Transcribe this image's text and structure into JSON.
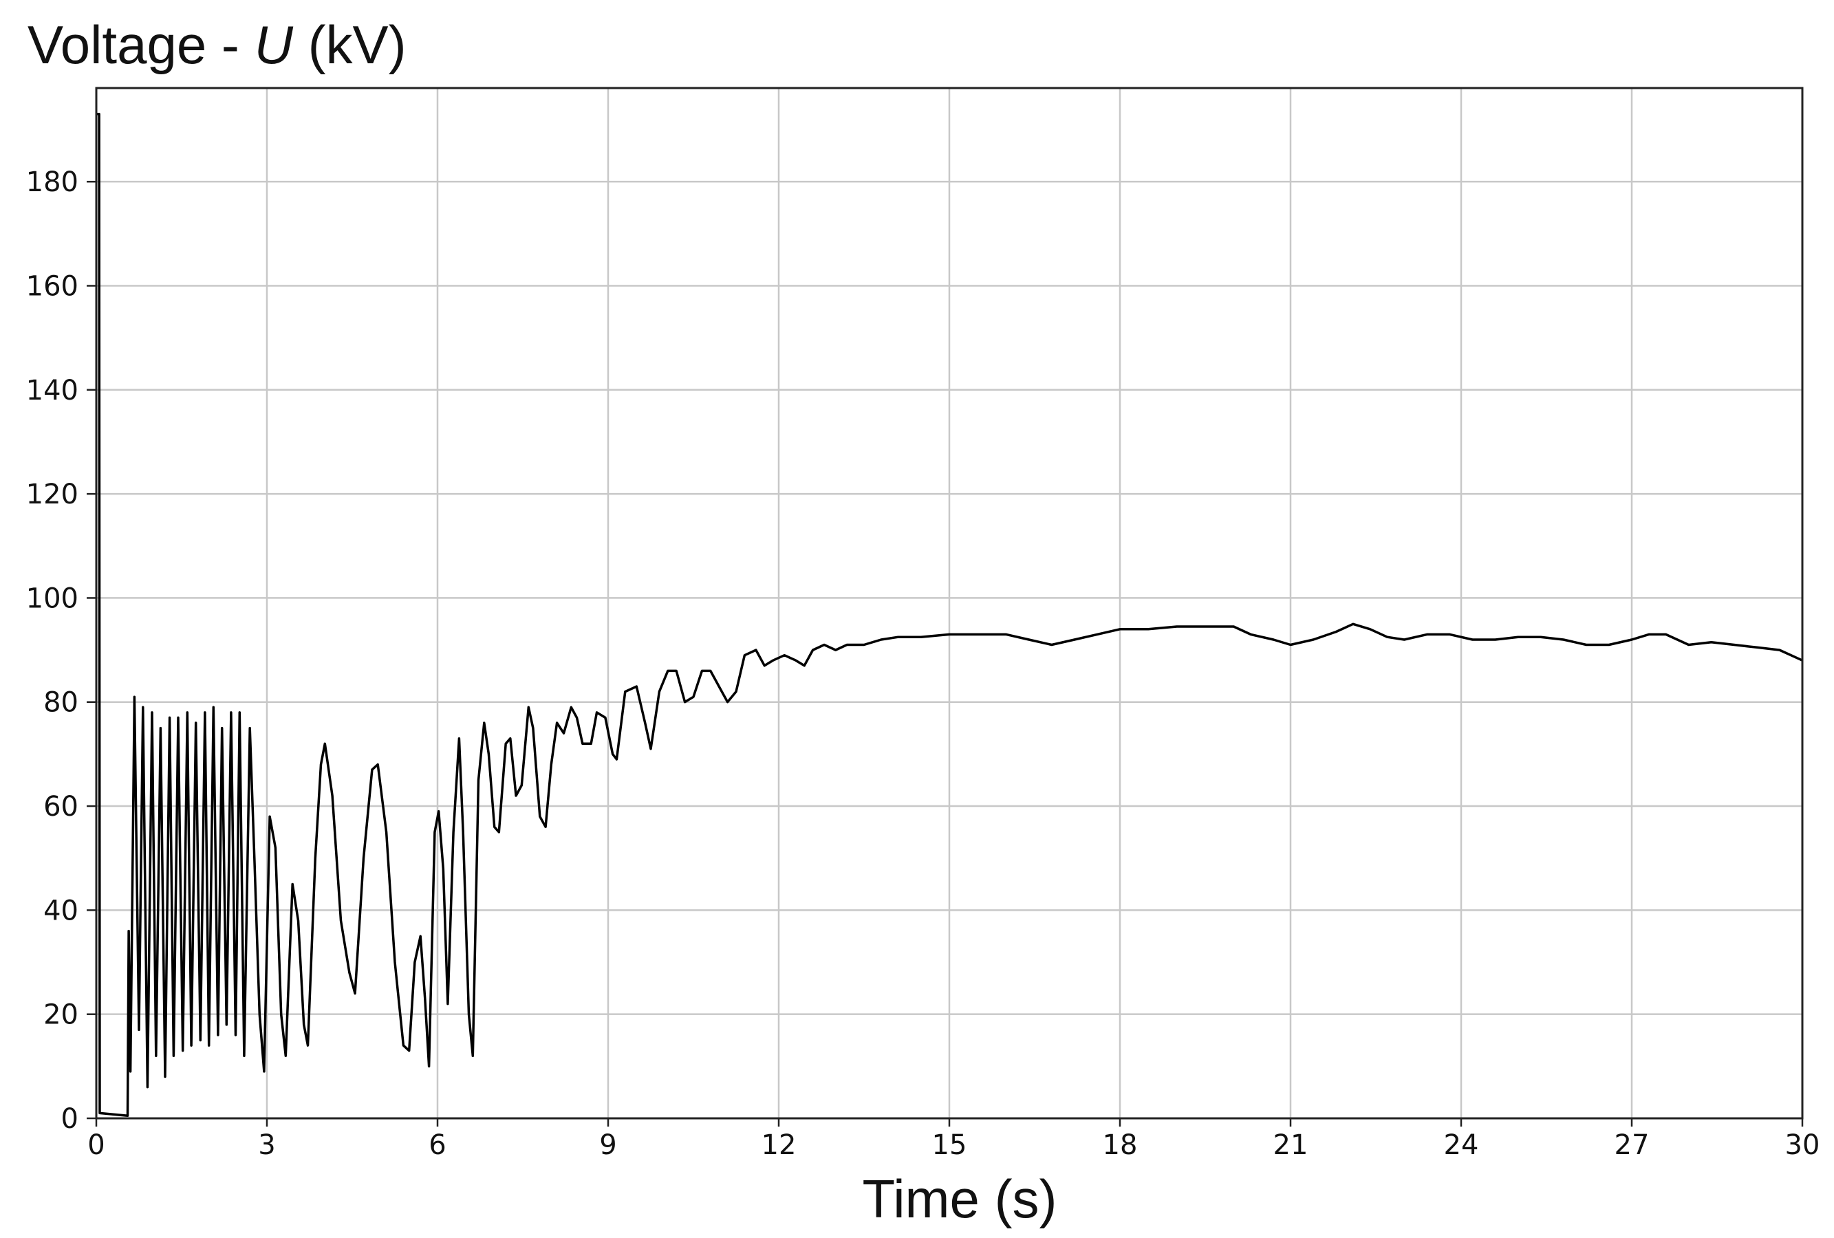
{
  "chart_data": {
    "type": "line",
    "ylabel": {
      "prefix": "Voltage - ",
      "symbol": "U",
      "unit": " (kV)"
    },
    "xlabel": "Time (s)",
    "xlim": [
      0,
      30
    ],
    "ylim": [
      0,
      198
    ],
    "xticks": [
      0,
      3,
      6,
      9,
      12,
      15,
      18,
      21,
      24,
      27,
      30
    ],
    "yticks": [
      0,
      20,
      40,
      60,
      80,
      100,
      120,
      140,
      160,
      180
    ],
    "grid": true,
    "legend": "none",
    "colors": {
      "line": "#000000",
      "grid": "#c8c8c8",
      "frame": "#222222"
    },
    "series": [
      {
        "points": [
          [
            0,
            193
          ],
          [
            0.05,
            193
          ],
          [
            0.06,
            1
          ],
          [
            0.55,
            0.5
          ],
          [
            0.57,
            36
          ],
          [
            0.6,
            9
          ],
          [
            0.67,
            81
          ],
          [
            0.75,
            17
          ],
          [
            0.82,
            79
          ],
          [
            0.9,
            6
          ],
          [
            0.98,
            78
          ],
          [
            1.05,
            12
          ],
          [
            1.13,
            75
          ],
          [
            1.21,
            8
          ],
          [
            1.29,
            77
          ],
          [
            1.36,
            12
          ],
          [
            1.44,
            77
          ],
          [
            1.52,
            13
          ],
          [
            1.6,
            78
          ],
          [
            1.67,
            14
          ],
          [
            1.75,
            76
          ],
          [
            1.83,
            15
          ],
          [
            1.91,
            78
          ],
          [
            1.98,
            14
          ],
          [
            2.06,
            79
          ],
          [
            2.14,
            16
          ],
          [
            2.21,
            75
          ],
          [
            2.29,
            18
          ],
          [
            2.37,
            78
          ],
          [
            2.45,
            16
          ],
          [
            2.52,
            78
          ],
          [
            2.6,
            12
          ],
          [
            2.7,
            75
          ],
          [
            2.78,
            50
          ],
          [
            2.87,
            20
          ],
          [
            2.95,
            9
          ],
          [
            3.05,
            58
          ],
          [
            3.15,
            52
          ],
          [
            3.25,
            20
          ],
          [
            3.33,
            12
          ],
          [
            3.45,
            45
          ],
          [
            3.55,
            38
          ],
          [
            3.65,
            18
          ],
          [
            3.72,
            14
          ],
          [
            3.85,
            50
          ],
          [
            3.95,
            68
          ],
          [
            4.02,
            72
          ],
          [
            4.15,
            62
          ],
          [
            4.3,
            38
          ],
          [
            4.45,
            28
          ],
          [
            4.55,
            24
          ],
          [
            4.7,
            50
          ],
          [
            4.85,
            67
          ],
          [
            4.95,
            68
          ],
          [
            5.1,
            55
          ],
          [
            5.25,
            30
          ],
          [
            5.4,
            14
          ],
          [
            5.5,
            13
          ],
          [
            5.6,
            30
          ],
          [
            5.7,
            35
          ],
          [
            5.78,
            23
          ],
          [
            5.85,
            10
          ],
          [
            5.95,
            55
          ],
          [
            6.02,
            59
          ],
          [
            6.1,
            48
          ],
          [
            6.18,
            22
          ],
          [
            6.28,
            55
          ],
          [
            6.38,
            73
          ],
          [
            6.45,
            55
          ],
          [
            6.55,
            20
          ],
          [
            6.62,
            12
          ],
          [
            6.72,
            65
          ],
          [
            6.82,
            76
          ],
          [
            6.9,
            70
          ],
          [
            7.0,
            56
          ],
          [
            7.08,
            55
          ],
          [
            7.2,
            72
          ],
          [
            7.28,
            73
          ],
          [
            7.38,
            62
          ],
          [
            7.48,
            64
          ],
          [
            7.6,
            79
          ],
          [
            7.68,
            75
          ],
          [
            7.8,
            58
          ],
          [
            7.9,
            56
          ],
          [
            8.0,
            68
          ],
          [
            8.1,
            76
          ],
          [
            8.22,
            74
          ],
          [
            8.35,
            79
          ],
          [
            8.45,
            77
          ],
          [
            8.55,
            72
          ],
          [
            8.7,
            72
          ],
          [
            8.8,
            78
          ],
          [
            8.95,
            77
          ],
          [
            9.08,
            70
          ],
          [
            9.15,
            69
          ],
          [
            9.3,
            82
          ],
          [
            9.5,
            83
          ],
          [
            9.65,
            76
          ],
          [
            9.75,
            71
          ],
          [
            9.9,
            82
          ],
          [
            10.05,
            86
          ],
          [
            10.2,
            86
          ],
          [
            10.35,
            80
          ],
          [
            10.5,
            81
          ],
          [
            10.65,
            86
          ],
          [
            10.8,
            86
          ],
          [
            10.95,
            83
          ],
          [
            11.1,
            80
          ],
          [
            11.25,
            82
          ],
          [
            11.4,
            89
          ],
          [
            11.6,
            90
          ],
          [
            11.75,
            87
          ],
          [
            11.9,
            88
          ],
          [
            12.1,
            89
          ],
          [
            12.3,
            88
          ],
          [
            12.45,
            87
          ],
          [
            12.6,
            90
          ],
          [
            12.8,
            91
          ],
          [
            13.0,
            90
          ],
          [
            13.2,
            91
          ],
          [
            13.5,
            91
          ],
          [
            13.8,
            92
          ],
          [
            14.1,
            92.5
          ],
          [
            14.5,
            92.5
          ],
          [
            15.0,
            93
          ],
          [
            15.5,
            93
          ],
          [
            16.0,
            93
          ],
          [
            16.4,
            92
          ],
          [
            16.8,
            91
          ],
          [
            17.2,
            92
          ],
          [
            17.6,
            93
          ],
          [
            18.0,
            94
          ],
          [
            18.5,
            94
          ],
          [
            19.0,
            94.5
          ],
          [
            19.5,
            94.5
          ],
          [
            20.0,
            94.5
          ],
          [
            20.3,
            93
          ],
          [
            20.7,
            92
          ],
          [
            21.0,
            91
          ],
          [
            21.4,
            92
          ],
          [
            21.8,
            93.5
          ],
          [
            22.1,
            95
          ],
          [
            22.4,
            94
          ],
          [
            22.7,
            92.5
          ],
          [
            23.0,
            92
          ],
          [
            23.4,
            93
          ],
          [
            23.8,
            93
          ],
          [
            24.2,
            92
          ],
          [
            24.6,
            92
          ],
          [
            25.0,
            92.5
          ],
          [
            25.4,
            92.5
          ],
          [
            25.8,
            92
          ],
          [
            26.2,
            91
          ],
          [
            26.6,
            91
          ],
          [
            27.0,
            92
          ],
          [
            27.3,
            93
          ],
          [
            27.6,
            93
          ],
          [
            28.0,
            91
          ],
          [
            28.4,
            91.5
          ],
          [
            28.8,
            91
          ],
          [
            29.2,
            90.5
          ],
          [
            29.6,
            90
          ],
          [
            30.0,
            88
          ]
        ]
      }
    ]
  }
}
